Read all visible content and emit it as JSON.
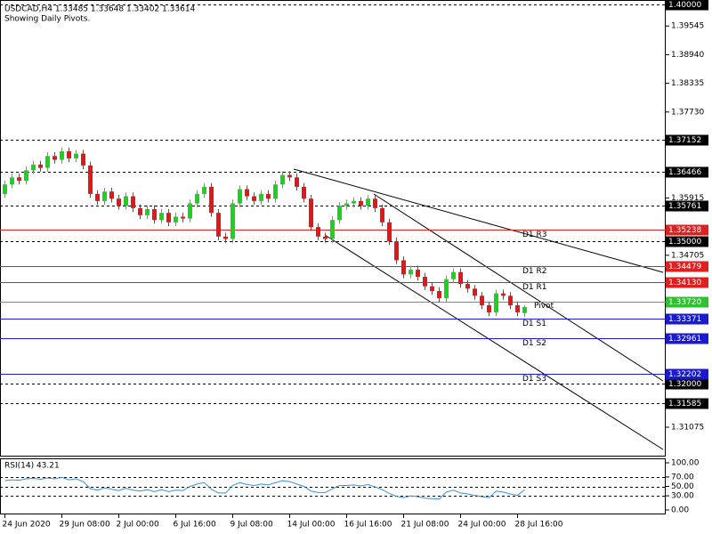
{
  "chart_data": {
    "type": "candlestick",
    "header": "USDCAD,H4  1.33485 1.33648 1.33402 1.33614",
    "subtitle": "Showing Daily Pivots.",
    "categories": [
      "24 Jun 2020",
      null,
      null,
      null,
      null,
      null,
      null,
      null,
      "29 Jun 08:00",
      null,
      null,
      null,
      null,
      null,
      null,
      null,
      "2 Jul 00:00",
      null,
      null,
      null,
      null,
      null,
      null,
      null,
      "6 Jul 16:00",
      null,
      null,
      null,
      null,
      null,
      null,
      null,
      "9 Jul 08:00",
      null,
      null,
      null,
      null,
      null,
      null,
      null,
      "14 Jul 00:00",
      null,
      null,
      null,
      null,
      null,
      null,
      null,
      "16 Jul 16:00",
      null,
      null,
      null,
      null,
      null,
      null,
      null,
      "21 Jul 08:00",
      null,
      null,
      null,
      null,
      null,
      null,
      null,
      "24 Jul 00:00",
      null,
      null,
      null,
      null,
      null,
      null,
      null,
      "28 Jul 16:00",
      null
    ],
    "open": [
      1.36,
      1.362,
      1.3635,
      1.3628,
      1.365,
      1.3662,
      1.3655,
      1.368,
      1.3672,
      1.369,
      1.3675,
      1.3685,
      1.366,
      1.36,
      1.3585,
      1.3605,
      1.359,
      1.3575,
      1.3595,
      1.357,
      1.3555,
      1.3568,
      1.3545,
      1.356,
      1.354,
      1.3552,
      1.3548,
      1.358,
      1.36,
      1.3615,
      1.356,
      1.351,
      1.3505,
      1.358,
      1.361,
      1.3595,
      1.3585,
      1.36,
      1.359,
      1.362,
      1.364,
      1.3635,
      1.3615,
      1.359,
      1.353,
      1.351,
      1.3505,
      1.3545,
      1.3575,
      1.358,
      1.3585,
      1.3575,
      1.359,
      1.357,
      1.354,
      1.35,
      1.346,
      1.343,
      1.344,
      1.3425,
      1.3405,
      1.3395,
      1.338,
      1.342,
      1.3435,
      1.341,
      1.34,
      1.3385,
      1.3365,
      1.335,
      1.339,
      1.3385,
      1.3365,
      1.33485
    ],
    "high": [
      1.3628,
      1.3643,
      1.3643,
      1.3658,
      1.367,
      1.367,
      1.3688,
      1.3688,
      1.3698,
      1.3698,
      1.3693,
      1.3693,
      1.3668,
      1.3608,
      1.3613,
      1.3613,
      1.3598,
      1.3603,
      1.3603,
      1.3578,
      1.3576,
      1.3576,
      1.3568,
      1.3568,
      1.356,
      1.356,
      1.3588,
      1.3608,
      1.3623,
      1.3623,
      1.3568,
      1.3518,
      1.3588,
      1.3618,
      1.3618,
      1.3603,
      1.3608,
      1.3608,
      1.3628,
      1.3648,
      1.3648,
      1.3643,
      1.3623,
      1.3598,
      1.3538,
      1.3518,
      1.3553,
      1.3583,
      1.3588,
      1.3593,
      1.3593,
      1.3598,
      1.3598,
      1.3578,
      1.3548,
      1.3508,
      1.3468,
      1.3448,
      1.3448,
      1.3433,
      1.3413,
      1.3403,
      1.3428,
      1.3443,
      1.3443,
      1.3418,
      1.3408,
      1.3393,
      1.3373,
      1.3398,
      1.3398,
      1.3393,
      1.3373,
      1.33648
    ],
    "low": [
      1.3592,
      1.3612,
      1.362,
      1.362,
      1.3642,
      1.3647,
      1.3647,
      1.3664,
      1.3664,
      1.3667,
      1.3667,
      1.3652,
      1.3592,
      1.3577,
      1.3577,
      1.3582,
      1.3567,
      1.3567,
      1.3562,
      1.3547,
      1.3547,
      1.3537,
      1.3537,
      1.3532,
      1.3532,
      1.354,
      1.354,
      1.3572,
      1.3592,
      1.3552,
      1.3502,
      1.3497,
      1.3497,
      1.3572,
      1.3587,
      1.3577,
      1.3577,
      1.3582,
      1.3582,
      1.3612,
      1.3627,
      1.3607,
      1.3582,
      1.3522,
      1.3502,
      1.3497,
      1.3497,
      1.3537,
      1.3567,
      1.3572,
      1.3567,
      1.3567,
      1.3562,
      1.3532,
      1.3492,
      1.3452,
      1.3422,
      1.3422,
      1.3417,
      1.3397,
      1.3387,
      1.3372,
      1.3372,
      1.3412,
      1.3402,
      1.3392,
      1.3377,
      1.3357,
      1.3342,
      1.3342,
      1.3377,
      1.3357,
      1.3342,
      1.33402
    ],
    "close": [
      1.362,
      1.3635,
      1.3628,
      1.365,
      1.3662,
      1.3655,
      1.368,
      1.3672,
      1.369,
      1.3675,
      1.3685,
      1.366,
      1.36,
      1.3585,
      1.3605,
      1.359,
      1.3575,
      1.3595,
      1.357,
      1.3555,
      1.3568,
      1.3545,
      1.356,
      1.354,
      1.3552,
      1.3548,
      1.358,
      1.36,
      1.3615,
      1.356,
      1.351,
      1.3505,
      1.358,
      1.361,
      1.3595,
      1.3585,
      1.36,
      1.359,
      1.362,
      1.364,
      1.3635,
      1.3615,
      1.359,
      1.353,
      1.351,
      1.3505,
      1.3545,
      1.3575,
      1.358,
      1.3585,
      1.3575,
      1.359,
      1.357,
      1.354,
      1.35,
      1.346,
      1.343,
      1.344,
      1.3425,
      1.3405,
      1.3395,
      1.338,
      1.342,
      1.3435,
      1.341,
      1.34,
      1.3385,
      1.3365,
      1.335,
      1.339,
      1.3385,
      1.3365,
      1.335,
      1.33614
    ],
    "up_color": "#1fd11f",
    "down_color": "#e01818",
    "ylim": [
      1.30474,
      1.40094
    ],
    "yticks": [
      1.39545,
      {
        "value": 1.3894,
        "label": "1.38940"
      },
      1.38335,
      {
        "value": 1.3773,
        "label": "1.37730"
      },
      1.35915,
      1.34705,
      1.31075
    ],
    "levels": [
      {
        "value": 1.4,
        "label": "1.40000",
        "color": "#000000",
        "style": "dashed"
      },
      {
        "value": 1.37152,
        "color": "#000000",
        "style": "dashed"
      },
      {
        "value": 1.36466,
        "color": "#000000",
        "style": "dashed"
      },
      {
        "value": 1.35761,
        "color": "#000000",
        "style": "dashed"
      },
      {
        "value": 1.35,
        "label": "1.35000",
        "color": "#000000",
        "style": "dashed"
      },
      {
        "value": 1.32,
        "label": "1.32000",
        "color": "#000000",
        "style": "dashed"
      },
      {
        "value": 1.31585,
        "color": "#000000",
        "style": "dashed"
      },
      {
        "name": "D1  R3",
        "value": 1.35238,
        "color": "#e02020",
        "style": "solid"
      },
      {
        "name": "D1  R2",
        "value": 1.34479,
        "color": "#e02020",
        "style": "solid"
      },
      {
        "name": "D1  R1",
        "value": 1.3413,
        "label": "1.34130",
        "color": "#e02020",
        "style": "solid"
      },
      {
        "name": "Pivot",
        "value": 1.3372,
        "label": "1.33720",
        "color": "#30c030",
        "style": "solid"
      },
      {
        "name": "D1  S1",
        "value": 1.33371,
        "color": "#1a1ad0",
        "style": "solid"
      },
      {
        "name": "D1  S2",
        "value": 1.32961,
        "color": "#1a1ad0",
        "style": "solid"
      },
      {
        "name": "D1  S3",
        "value": 1.32202,
        "color": "#1a1ad0",
        "style": "solid"
      }
    ],
    "rsi": {
      "title": "RSI(14) 43.21",
      "color": "#3a8fd8",
      "ylim": [
        0,
        100
      ],
      "yticks": [
        {
          "value": 100,
          "label": "100.00"
        },
        {
          "value": 70,
          "label": "70.00"
        },
        {
          "value": 50,
          "label": "50.00"
        },
        {
          "value": 30,
          "label": "30.00"
        },
        {
          "value": 0,
          "label": "0.00"
        }
      ],
      "levels": [
        70,
        50,
        30
      ],
      "values": [
        62,
        64,
        63,
        66,
        67,
        65,
        68,
        66,
        69,
        64,
        66,
        60,
        45,
        42,
        47,
        44,
        41,
        46,
        42,
        40,
        43,
        39,
        43,
        39,
        42,
        41,
        50,
        55,
        58,
        44,
        36,
        36,
        52,
        58,
        54,
        52,
        55,
        53,
        58,
        62,
        60,
        55,
        50,
        40,
        37,
        37,
        45,
        52,
        52,
        53,
        51,
        54,
        49,
        43,
        35,
        29,
        26,
        30,
        28,
        25,
        24,
        23,
        38,
        42,
        36,
        34,
        31,
        28,
        26,
        40,
        38,
        34,
        31,
        43.21
      ]
    }
  }
}
